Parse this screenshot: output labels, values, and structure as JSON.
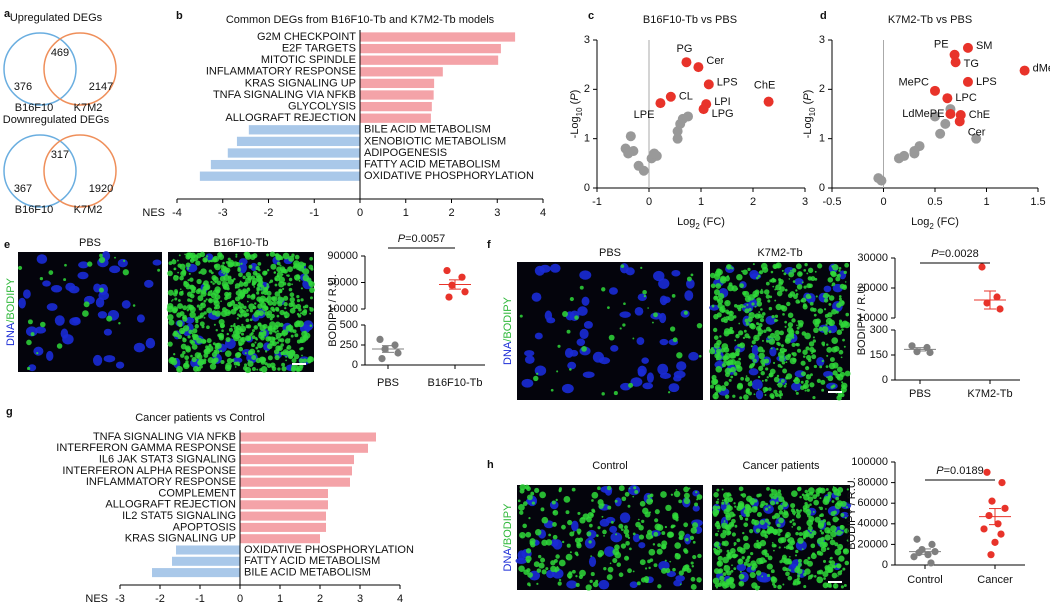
{
  "chart_data": [
    {
      "panel": "a",
      "type": "venn",
      "colors": {
        "left": "#6aaee0",
        "right": "#ef8f5a"
      },
      "venns": [
        {
          "title": "Upregulated DEGs",
          "left_only": 376,
          "both": 469,
          "right_only": 2147,
          "left_label": "B16F10",
          "right_label": "K7M2"
        },
        {
          "title": "Downregulated DEGs",
          "left_only": 367,
          "both": 317,
          "right_only": 1920,
          "left_label": "B16F10",
          "right_label": "K7M2"
        }
      ]
    },
    {
      "panel": "b",
      "type": "bar",
      "orientation": "horizontal",
      "title": "Common DEGs from B16F10-Tb and K7M2-Tb models",
      "xlabel": "NES",
      "categories": [
        "G2M CHECKPOINT",
        "E2F TARGETS",
        "MITOTIC SPINDLE",
        "INFLAMMATORY RESPONSE",
        "KRAS SIGNALING UP",
        "TNFA SIGNALING VIA NFKB",
        "GLYCOLYSIS",
        "ALLOGRAFT REJECTION",
        "BILE ACID METABOLISM",
        "XENOBIOTIC METABOLISM",
        "ADIPOGENESIS",
        "FATTY ACID METABOLISM",
        "OXIDATIVE PHOSPHORYLATION"
      ],
      "values": [
        3.39,
        3.08,
        3.02,
        1.81,
        1.62,
        1.61,
        1.57,
        1.55,
        -2.43,
        -2.69,
        -2.89,
        -3.26,
        -3.5
      ],
      "colors": {
        "positive": "#f4a3a8",
        "negative": "#a9c8e9"
      },
      "xlim": [
        -4,
        4
      ],
      "xticks": [
        -4,
        -3,
        -2,
        -1,
        0,
        1,
        2,
        3,
        4
      ]
    },
    {
      "panel": "c",
      "type": "scatter",
      "title": "B16F10-Tb vs PBS",
      "xlabel": [
        "Log",
        "2",
        " (FC)"
      ],
      "ylabel": [
        "-Log",
        "10",
        " (",
        "P",
        ")"
      ],
      "series": [
        {
          "color": "#e8332a",
          "x": [
            0.72,
            0.95,
            1.15,
            0.42,
            1.1,
            0.22,
            1.05,
            2.3
          ],
          "values": [
            2.55,
            2.45,
            2.1,
            1.85,
            1.7,
            1.72,
            1.6,
            1.75
          ],
          "labels": [
            "PG",
            "Cer",
            "LPS",
            "CL",
            "LPI",
            "LPE",
            "LPG",
            "ChE"
          ]
        },
        {
          "color": "#999999",
          "x": [
            -0.35,
            -0.45,
            -0.3,
            -0.4,
            -0.2,
            0.05,
            0.15,
            0.1,
            0.55,
            0.65,
            0.75,
            0.6,
            0.55,
            -0.1
          ],
          "values": [
            1.05,
            0.8,
            0.75,
            0.7,
            0.45,
            0.6,
            0.65,
            0.7,
            1.15,
            1.4,
            1.45,
            1.3,
            1.0,
            0.35
          ]
        }
      ],
      "xlim": [
        -1,
        3
      ],
      "xticks": [
        -1,
        0,
        1,
        2,
        3
      ],
      "ylim": [
        0,
        3
      ],
      "yticks": [
        0,
        1,
        2,
        3
      ],
      "vline": 0
    },
    {
      "panel": "d",
      "type": "scatter",
      "title": "K7M2-Tb vs PBS",
      "xlabel": [
        "Log",
        "2",
        " (FC)"
      ],
      "ylabel": [
        "-Log",
        "10",
        " (",
        "P",
        ")"
      ],
      "series": [
        {
          "color": "#e8332a",
          "x": [
            0.69,
            0.82,
            0.7,
            1.37,
            0.82,
            0.5,
            0.62,
            0.65,
            0.75,
            0.74
          ],
          "values": [
            2.7,
            2.84,
            2.55,
            2.38,
            2.15,
            1.97,
            1.82,
            1.5,
            1.48,
            1.35
          ],
          "labels": [
            "PE",
            "SM",
            "TG",
            "dMePE",
            "LPS",
            "MePC",
            "LPC",
            "LdMePE",
            "ChE",
            "Cer"
          ]
        },
        {
          "color": "#999999",
          "x": [
            -0.05,
            -0.02,
            0.15,
            0.2,
            0.3,
            0.35,
            0.3,
            0.55,
            0.6,
            0.65,
            0.5,
            0.9
          ],
          "values": [
            0.2,
            0.15,
            0.6,
            0.65,
            0.7,
            0.85,
            0.75,
            1.1,
            1.3,
            1.6,
            1.45,
            1.0
          ]
        }
      ],
      "xlim": [
        -0.5,
        1.5
      ],
      "xticks": [
        -0.5,
        0,
        0.5,
        1,
        1.5
      ],
      "ylim": [
        0,
        3
      ],
      "yticks": [
        0,
        1,
        2,
        3
      ],
      "vline": 0
    },
    {
      "panel": "e",
      "type": "dot",
      "image_labels": [
        "PBS",
        "B16F10-Tb"
      ],
      "stain": [
        "DNA",
        "/",
        "BODIPY"
      ],
      "ylabel": "BODIPY / R.U.",
      "categories": [
        "PBS",
        "B16F10-Tb"
      ],
      "groups": [
        {
          "color": "#7f7f7f",
          "values": [
            320,
            250,
            200,
            150,
            80
          ],
          "mean": 200,
          "sem": 42
        },
        {
          "color": "#e8332a",
          "values": [
            68000,
            58000,
            46000,
            36000,
            28000
          ],
          "mean": 47000,
          "sem": 7000
        }
      ],
      "ylim": [
        0,
        90000
      ],
      "ybreak": [
        500,
        10000
      ],
      "yticks": [
        0,
        250,
        500,
        10000,
        50000,
        90000
      ],
      "annotation": [
        "P",
        "=0.0057"
      ]
    },
    {
      "panel": "f",
      "type": "dot",
      "image_labels": [
        "PBS",
        "K7M2-Tb"
      ],
      "stain": [
        "DNA",
        "/",
        "BODIPY"
      ],
      "ylabel": "BODIPY / R.U.",
      "categories": [
        "PBS",
        "K7M2-Tb"
      ],
      "groups": [
        {
          "color": "#7f7f7f",
          "values": [
            205,
            195,
            170,
            165
          ],
          "mean": 184,
          "sem": 10
        },
        {
          "color": "#e8332a",
          "values": [
            27000,
            17000,
            15000,
            13000
          ],
          "mean": 16000,
          "sem": 3000
        }
      ],
      "ylim": [
        0,
        30000
      ],
      "ybreak": [
        300,
        10000
      ],
      "yticks": [
        0,
        150,
        300,
        10000,
        20000,
        30000
      ],
      "annotation": [
        "P",
        "=0.0028"
      ]
    },
    {
      "panel": "g",
      "type": "bar",
      "orientation": "horizontal",
      "title": "Cancer patients vs Control",
      "xlabel": "NES",
      "categories": [
        "TNFA SIGNALING VIA NFKB",
        "INTERFERON GAMMA RESPONSE",
        "IL6 JAK STAT3 SIGNALING",
        "INTERFERON ALPHA RESPONSE",
        "INFLAMMATORY RESPONSE",
        "COMPLEMENT",
        "ALLOGRAFT REJECTION",
        "IL2 STAT5 SIGNALING",
        "APOPTOSIS",
        "KRAS SIGNALING UP",
        "OXIDATIVE PHOSPHORYLATION",
        "FATTY ACID METABOLISM",
        "BILE ACID METABOLISM"
      ],
      "values": [
        3.4,
        3.2,
        2.85,
        2.8,
        2.75,
        2.2,
        2.2,
        2.15,
        2.15,
        2.0,
        -1.6,
        -1.7,
        -2.2
      ],
      "colors": {
        "positive": "#f4a3a8",
        "negative": "#a9c8e9"
      },
      "xlim": [
        -3,
        4
      ],
      "xticks": [
        -3,
        -2,
        -1,
        0,
        1,
        2,
        3,
        4
      ]
    },
    {
      "panel": "h",
      "type": "dot",
      "image_labels": [
        "Control",
        "Cancer patients"
      ],
      "stain": [
        "DNA",
        "/",
        "BODIPY"
      ],
      "ylabel": "BODIPY / R.U.",
      "categories": [
        "Control",
        "Cancer"
      ],
      "groups": [
        {
          "color": "#7f7f7f",
          "values": [
            25000,
            20000,
            15000,
            13000,
            12000,
            10000,
            8000,
            2000
          ],
          "mean": 13000,
          "sem": 2600
        },
        {
          "color": "#e8332a",
          "values": [
            90000,
            80000,
            62000,
            55000,
            48000,
            40000,
            35000,
            30000,
            22000,
            10000
          ],
          "mean": 47000,
          "sem": 7800
        }
      ],
      "ylim": [
        0,
        100000
      ],
      "yticks": [
        0,
        20000,
        40000,
        60000,
        80000,
        100000
      ],
      "annotation": [
        "P",
        "=0.0189"
      ]
    }
  ]
}
